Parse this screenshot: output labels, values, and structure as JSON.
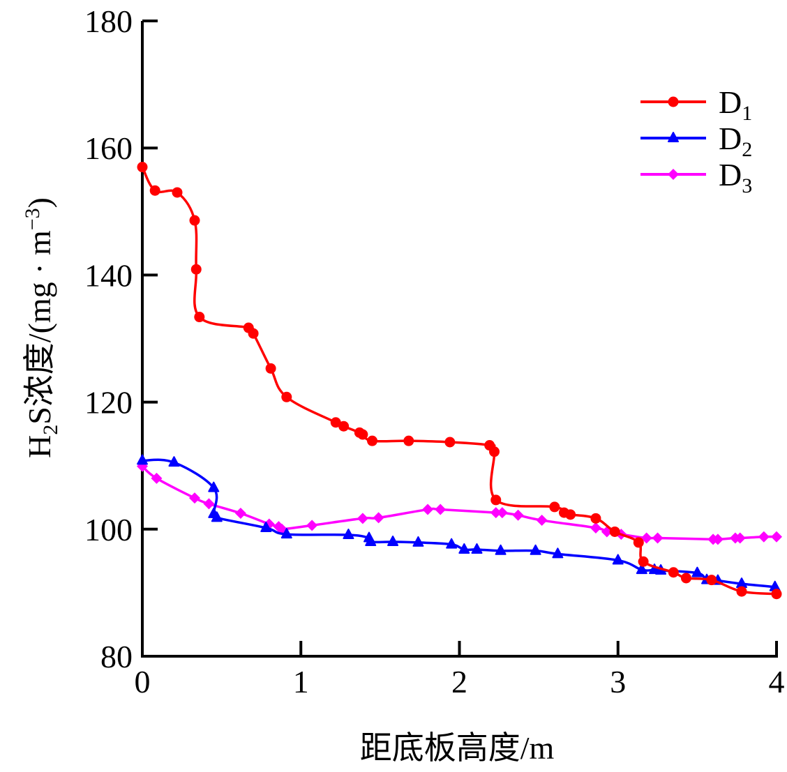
{
  "chart_data": {
    "type": "line",
    "title": "",
    "xlabel": "距底板高度/m",
    "ylabel": {
      "prefix": "H",
      "sub": "2",
      "mid": "S浓度/(mg · m",
      "sup": "−3",
      "suffix": ")"
    },
    "xlim": [
      0,
      4
    ],
    "ylim": [
      80,
      180
    ],
    "x_ticks": [
      "0",
      "1",
      "2",
      "3",
      "4"
    ],
    "y_ticks": [
      "80",
      "100",
      "120",
      "140",
      "160",
      "180"
    ],
    "grid": false,
    "legend_position": "top-right",
    "series": [
      {
        "name": "D1",
        "label_main": "D",
        "label_sub": "1",
        "color": "#ff0000",
        "marker": "circle",
        "x": [
          0,
          0.08,
          0.22,
          0.33,
          0.34,
          0.36,
          0.67,
          0.7,
          0.81,
          0.91,
          1.22,
          1.27,
          1.37,
          1.39,
          1.45,
          1.68,
          1.94,
          2.19,
          2.22,
          2.23,
          2.6,
          2.66,
          2.7,
          2.86,
          2.98,
          3.13,
          3.16,
          3.35,
          3.43,
          3.59,
          3.78,
          4.0
        ],
        "y": [
          157.0,
          153.3,
          153.0,
          148.6,
          140.9,
          133.4,
          131.7,
          130.8,
          125.3,
          120.8,
          116.8,
          116.2,
          115.2,
          114.9,
          113.9,
          113.9,
          113.7,
          113.2,
          112.2,
          104.6,
          103.5,
          102.6,
          102.3,
          101.7,
          99.6,
          97.9,
          94.9,
          93.2,
          92.3,
          92.0,
          90.2,
          89.8
        ]
      },
      {
        "name": "D2",
        "label_main": "D",
        "label_sub": "2",
        "color": "#0000ff",
        "marker": "triangle",
        "x": [
          0,
          0.2,
          0.45,
          0.45,
          0.47,
          0.78,
          0.91,
          1.3,
          1.43,
          1.44,
          1.58,
          1.74,
          1.95,
          2.03,
          2.11,
          2.26,
          2.48,
          2.62,
          3.0,
          3.15,
          3.23,
          3.27,
          3.5,
          3.56,
          3.63,
          3.78,
          3.99
        ],
        "y": [
          110.8,
          110.5,
          106.5,
          102.4,
          101.8,
          100.2,
          99.2,
          99.1,
          98.6,
          98.0,
          98.0,
          97.9,
          97.6,
          96.8,
          96.8,
          96.6,
          96.6,
          96.1,
          95.1,
          93.6,
          93.6,
          93.5,
          93.1,
          92.0,
          91.9,
          91.4,
          90.9
        ]
      },
      {
        "name": "D3",
        "label_main": "D",
        "label_sub": "3",
        "color": "#ff00ff",
        "marker": "diamond",
        "x": [
          0,
          0.09,
          0.33,
          0.42,
          0.62,
          0.8,
          0.86,
          0.88,
          1.07,
          1.39,
          1.49,
          1.8,
          1.88,
          2.23,
          2.27,
          2.37,
          2.52,
          2.86,
          2.93,
          3.02,
          3.18,
          3.25,
          3.6,
          3.63,
          3.74,
          3.77,
          3.92,
          4.0
        ],
        "y": [
          109.9,
          108.0,
          104.9,
          104.0,
          102.5,
          100.8,
          100.4,
          100.0,
          100.6,
          101.7,
          101.8,
          103.1,
          103.1,
          102.6,
          102.6,
          102.2,
          101.4,
          100.2,
          99.6,
          99.2,
          98.6,
          98.6,
          98.4,
          98.4,
          98.6,
          98.6,
          98.8,
          98.8
        ]
      }
    ]
  }
}
